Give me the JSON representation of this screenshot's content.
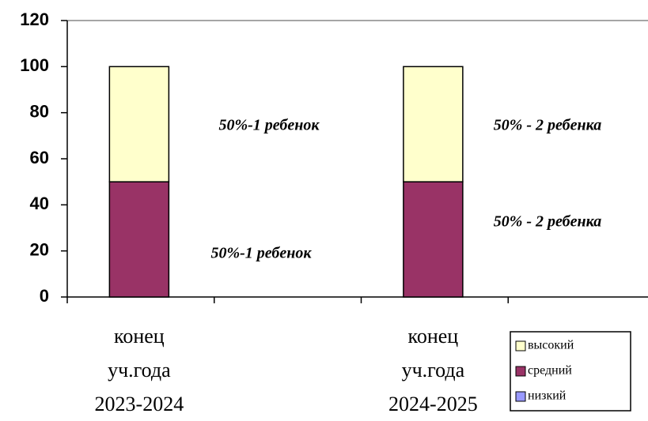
{
  "chart_data": {
    "type": "stacked_bar",
    "categories": [
      "конец уч.года 2023-2024",
      null,
      "конец уч.года 2024-2025",
      null
    ],
    "series": [
      {
        "name": "низкий",
        "color": "#9999ff",
        "values": [
          0,
          null,
          0,
          null
        ]
      },
      {
        "name": "средний",
        "color": "#993366",
        "values": [
          50,
          null,
          50,
          null
        ]
      },
      {
        "name": "высокий",
        "color": "#ffffcc",
        "values": [
          50,
          null,
          50,
          null
        ]
      }
    ],
    "ylim": [
      0,
      120
    ],
    "yticks": [
      0,
      20,
      40,
      60,
      80,
      100,
      120
    ],
    "grid": false,
    "legend": "bottom-right",
    "annotations": [
      "50%-1 ребенок",
      "50% - 2 ребенка",
      "50%-1 ребенок",
      "50% - 2 ребенка"
    ]
  }
}
